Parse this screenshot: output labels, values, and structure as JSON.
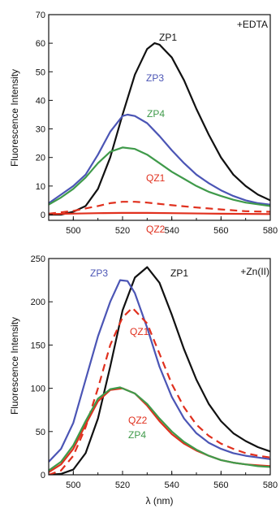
{
  "chart_data": [
    {
      "type": "line",
      "annotation": "+EDTA",
      "xlabel": "",
      "ylabel": "Fluorescence Intensity",
      "xlim": [
        490,
        580
      ],
      "ylim": [
        -2,
        70
      ],
      "x_ticks": [
        "500",
        "520",
        "540",
        "560",
        "580"
      ],
      "y_ticks": [
        "0",
        "10",
        "20",
        "30",
        "40",
        "50",
        "60",
        "70"
      ],
      "grid": false,
      "series": [
        {
          "name": "ZP1",
          "color": "#111111",
          "dash": false,
          "x": [
            490,
            495,
            500,
            505,
            510,
            515,
            520,
            525,
            530,
            533,
            535,
            540,
            545,
            550,
            555,
            560,
            565,
            570,
            575,
            580
          ],
          "y": [
            0,
            0,
            1,
            3,
            9,
            20,
            35,
            49,
            58,
            60,
            59.5,
            55,
            47,
            37,
            28,
            20,
            14,
            10,
            7,
            5
          ]
        },
        {
          "name": "ZP3",
          "color": "#4b55b5",
          "dash": false,
          "x": [
            490,
            495,
            500,
            505,
            510,
            515,
            520,
            522,
            525,
            530,
            535,
            540,
            545,
            550,
            555,
            560,
            565,
            570,
            575,
            580
          ],
          "y": [
            4,
            7,
            10,
            14,
            21,
            29,
            34.5,
            35,
            34.5,
            32,
            27.5,
            22.5,
            18,
            14,
            11,
            8.5,
            6.5,
            5,
            4,
            3.5
          ]
        },
        {
          "name": "ZP4",
          "color": "#3f9a4a",
          "dash": false,
          "x": [
            490,
            495,
            500,
            505,
            510,
            515,
            520,
            525,
            530,
            535,
            540,
            545,
            550,
            555,
            560,
            565,
            570,
            575,
            580
          ],
          "y": [
            3.5,
            6,
            9,
            13,
            18,
            22,
            23.5,
            23,
            21,
            18,
            15,
            12.5,
            10,
            8,
            6.5,
            5.2,
            4.2,
            3.6,
            3
          ]
        },
        {
          "name": "QZ1",
          "color": "#e0301e",
          "dash": true,
          "x": [
            490,
            500,
            510,
            515,
            520,
            525,
            530,
            540,
            550,
            560,
            570,
            580
          ],
          "y": [
            0.3,
            1.3,
            3,
            4,
            4.5,
            4.5,
            4.2,
            3.3,
            2.5,
            1.8,
            1.2,
            1
          ]
        },
        {
          "name": "QZ2",
          "color": "#e0301e",
          "dash": false,
          "x": [
            490,
            510,
            520,
            530,
            540,
            560,
            580
          ],
          "y": [
            0.2,
            0.5,
            0.6,
            0.6,
            0.5,
            0.3,
            0.2
          ]
        }
      ]
    },
    {
      "type": "line",
      "annotation": "+Zn(II)",
      "xlabel": "λ (nm)",
      "ylabel": "Fluorescence Intensity",
      "xlim": [
        490,
        580
      ],
      "ylim": [
        0,
        250
      ],
      "x_ticks": [
        "500",
        "520",
        "540",
        "560",
        "580"
      ],
      "y_ticks": [
        "0",
        "50",
        "100",
        "150",
        "200",
        "250"
      ],
      "grid": false,
      "series": [
        {
          "name": "ZP1",
          "color": "#111111",
          "dash": false,
          "x": [
            490,
            495,
            500,
            505,
            510,
            515,
            520,
            525,
            530,
            535,
            540,
            545,
            550,
            555,
            560,
            565,
            570,
            575,
            580
          ],
          "y": [
            0,
            1,
            6,
            25,
            65,
            125,
            190,
            228,
            240,
            222,
            185,
            145,
            110,
            82,
            62,
            48,
            39,
            32,
            27
          ]
        },
        {
          "name": "ZP3",
          "color": "#4b55b5",
          "dash": false,
          "x": [
            490,
            495,
            500,
            505,
            510,
            515,
            519,
            522,
            525,
            530,
            535,
            540,
            545,
            550,
            555,
            560,
            565,
            570,
            575,
            580
          ],
          "y": [
            15,
            30,
            60,
            110,
            160,
            200,
            225,
            224,
            210,
            170,
            125,
            90,
            65,
            48,
            37,
            30,
            25,
            22,
            20,
            18
          ]
        },
        {
          "name": "QZ1",
          "color": "#e0301e",
          "dash": true,
          "x": [
            490,
            495,
            500,
            505,
            510,
            515,
            520,
            524,
            530,
            535,
            540,
            545,
            550,
            555,
            560,
            565,
            570,
            575,
            580
          ],
          "y": [
            0,
            5,
            22,
            55,
            100,
            150,
            182,
            193,
            175,
            140,
            105,
            78,
            58,
            45,
            36,
            30,
            25,
            22,
            20
          ]
        },
        {
          "name": "QZ2",
          "color": "#e0301e",
          "dash": false,
          "x": [
            490,
            495,
            500,
            505,
            510,
            515,
            520,
            525,
            530,
            535,
            540,
            545,
            550,
            555,
            560,
            565,
            570,
            575,
            580
          ],
          "y": [
            3,
            12,
            30,
            58,
            85,
            98,
            100,
            94,
            80,
            62,
            47,
            36,
            28,
            22,
            17,
            14,
            12,
            11,
            10
          ]
        },
        {
          "name": "ZP4",
          "color": "#3f9a4a",
          "dash": false,
          "x": [
            490,
            495,
            500,
            505,
            510,
            515,
            519,
            525,
            530,
            535,
            540,
            545,
            550,
            555,
            560,
            565,
            570,
            575,
            580
          ],
          "y": [
            5,
            15,
            34,
            62,
            88,
            99,
            101,
            94,
            82,
            65,
            50,
            38,
            29,
            22,
            17,
            14,
            12,
            10,
            9
          ]
        }
      ]
    }
  ]
}
